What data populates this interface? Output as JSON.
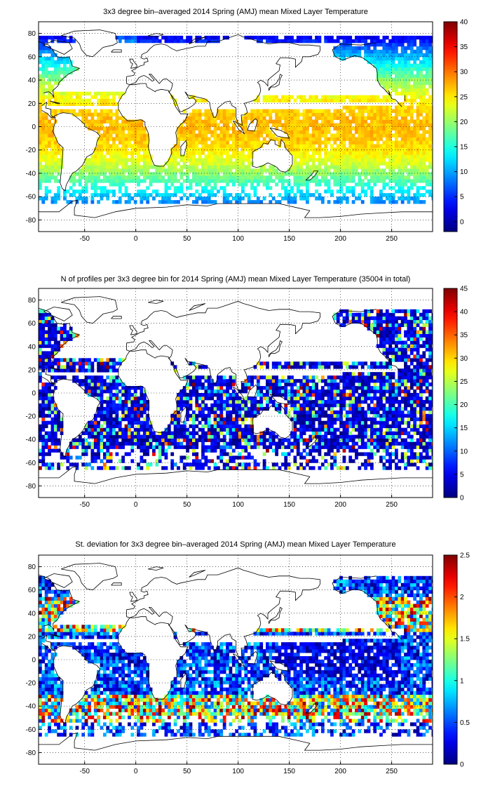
{
  "chart_data": [
    {
      "type": "heatmap",
      "title": "3x3 degree bin–averaged 2014 Spring (AMJ) mean Mixed Layer Temperature",
      "xlim": [
        -95,
        290
      ],
      "ylim": [
        -90,
        90
      ],
      "xticks": [
        "-50",
        "0",
        "50",
        "100",
        "150",
        "200",
        "250"
      ],
      "yticks": [
        "80",
        "60",
        "40",
        "20",
        "0",
        "-20",
        "-40",
        "-60",
        "-80"
      ],
      "colorbar": {
        "min": -2,
        "max": 40,
        "ticks": [
          "40",
          "35",
          "30",
          "25",
          "20",
          "15",
          "10",
          "5",
          "0"
        ]
      },
      "colormap": "jet",
      "grid": "dotted",
      "bin_size_deg": 3,
      "field": "temperature"
    },
    {
      "type": "heatmap",
      "title": "N of profiles per 3x3 degree bin for 2014 Spring (AMJ) mean Mixed Layer Temperature  (35004 in total)",
      "xlim": [
        -95,
        290
      ],
      "ylim": [
        -90,
        90
      ],
      "xticks": [
        "-50",
        "0",
        "50",
        "100",
        "150",
        "200",
        "250"
      ],
      "yticks": [
        "80",
        "60",
        "40",
        "20",
        "0",
        "-20",
        "-40",
        "-60",
        "-80"
      ],
      "colorbar": {
        "min": 0,
        "max": 45,
        "ticks": [
          "45",
          "40",
          "35",
          "30",
          "25",
          "20",
          "15",
          "10",
          "5",
          "0"
        ]
      },
      "colormap": "jet",
      "grid": "dotted",
      "bin_size_deg": 3,
      "field": "count"
    },
    {
      "type": "heatmap",
      "title": "St. deviation for 3x3 degree bin–averaged 2014 Spring (AMJ) mean Mixed Layer Temperature",
      "xlim": [
        -95,
        290
      ],
      "ylim": [
        -90,
        90
      ],
      "xticks": [
        "-50",
        "0",
        "50",
        "100",
        "150",
        "200",
        "250"
      ],
      "yticks": [
        "80",
        "60",
        "40",
        "20",
        "0",
        "-20",
        "-40",
        "-60",
        "-80"
      ],
      "colorbar": {
        "min": 0,
        "max": 2.5,
        "ticks": [
          "2.5",
          "2",
          "1.5",
          "1",
          "0.5",
          "0"
        ]
      },
      "colormap": "jet",
      "grid": "dotted",
      "bin_size_deg": 3,
      "field": "stdev"
    }
  ]
}
